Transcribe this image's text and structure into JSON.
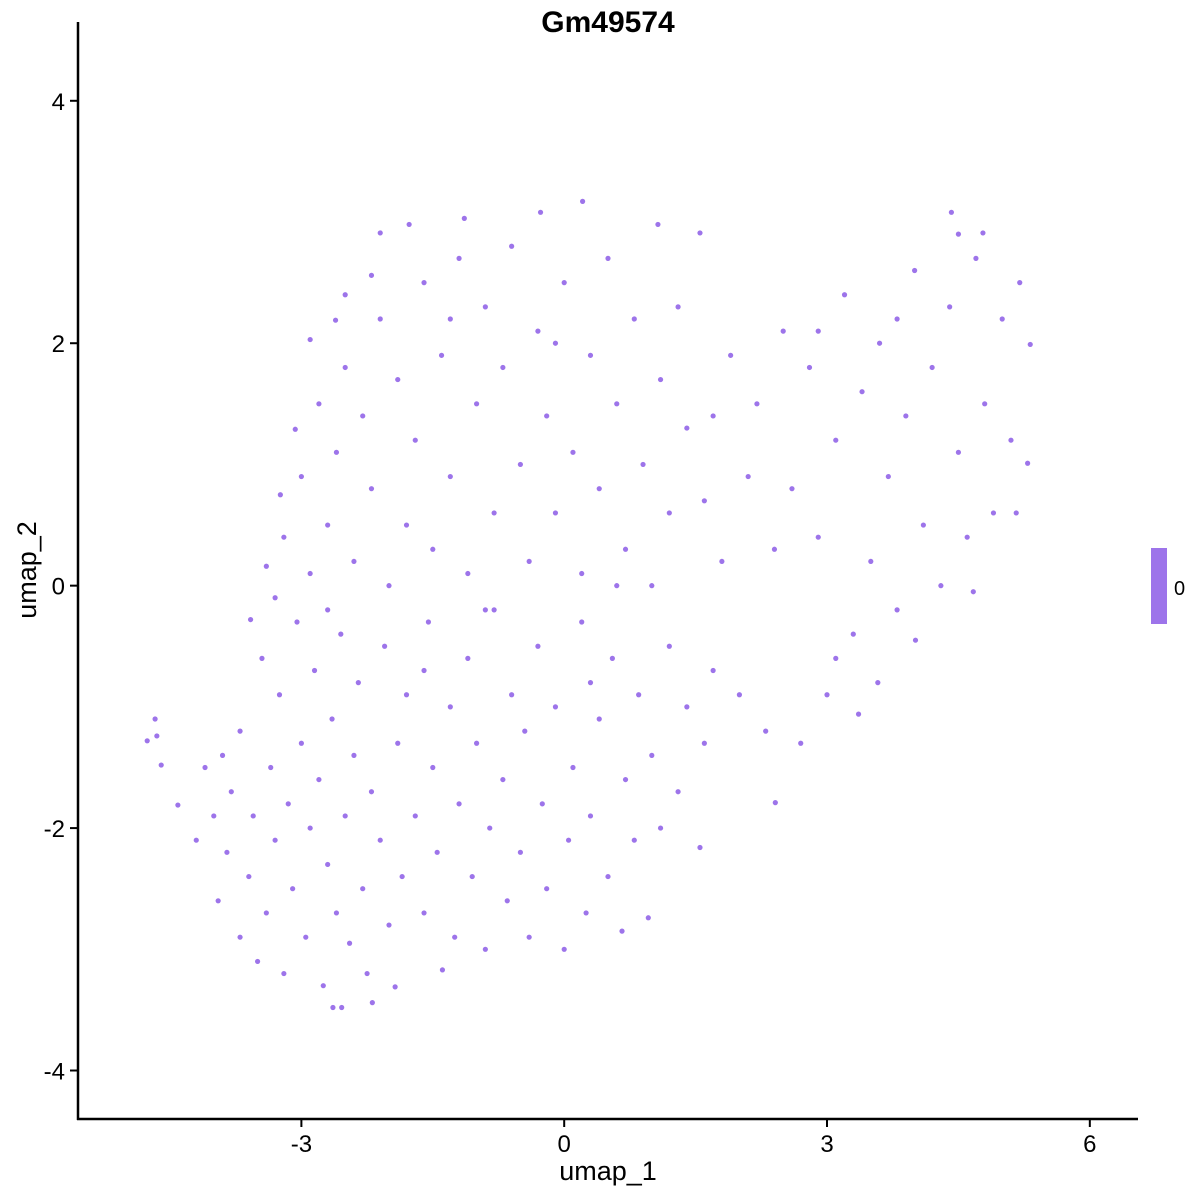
{
  "chart_data": {
    "type": "scatter",
    "title": "Gm49574",
    "xlabel": "umap_1",
    "ylabel": "umap_2",
    "xlim": [
      -5.55,
      6.55
    ],
    "ylim": [
      -4.4,
      4.65
    ],
    "xticks": [
      "-3",
      "0",
      "3",
      "6"
    ],
    "xtick_values": [
      -3,
      0,
      3,
      6
    ],
    "yticks": [
      "-4",
      "-2",
      "0",
      "2",
      "4"
    ],
    "ytick_values": [
      -4,
      -2,
      0,
      2,
      4
    ],
    "grid": false,
    "point_color": "#9d74ea",
    "legend": {
      "placement": "right",
      "labels": [
        "0"
      ],
      "color": "#9d74ea"
    },
    "points": [
      [
        -4.76,
        -1.28
      ],
      [
        -4.67,
        -1.1
      ],
      [
        -4.65,
        -1.24
      ],
      [
        -4.6,
        -1.48
      ],
      [
        -4.41,
        -1.81
      ],
      [
        -4.2,
        -2.1
      ],
      [
        -4.1,
        -1.5
      ],
      [
        -4.0,
        -1.9
      ],
      [
        -3.95,
        -2.6
      ],
      [
        -3.9,
        -1.4
      ],
      [
        -3.85,
        -2.2
      ],
      [
        -3.8,
        -1.7
      ],
      [
        -3.7,
        -2.9
      ],
      [
        -3.7,
        -1.2
      ],
      [
        -3.6,
        -2.4
      ],
      [
        -3.55,
        -1.9
      ],
      [
        -3.5,
        -3.1
      ],
      [
        -3.45,
        -0.6
      ],
      [
        -3.4,
        -2.7
      ],
      [
        -3.35,
        -1.5
      ],
      [
        -3.3,
        -2.1
      ],
      [
        -3.25,
        -0.9
      ],
      [
        -3.2,
        -3.2
      ],
      [
        -3.15,
        -1.8
      ],
      [
        -3.1,
        -2.5
      ],
      [
        -3.05,
        -0.3
      ],
      [
        -3.0,
        -1.3
      ],
      [
        -2.95,
        -2.9
      ],
      [
        -2.9,
        -2.0
      ],
      [
        -2.85,
        -0.7
      ],
      [
        -2.8,
        -1.6
      ],
      [
        -2.75,
        -3.3
      ],
      [
        -2.7,
        -2.3
      ],
      [
        -2.65,
        -1.1
      ],
      [
        -2.64,
        -3.48
      ],
      [
        -2.6,
        -2.7
      ],
      [
        -2.55,
        -0.4
      ],
      [
        -2.54,
        -3.48
      ],
      [
        -2.5,
        -1.9
      ],
      [
        -2.45,
        -2.95
      ],
      [
        -2.4,
        -1.4
      ],
      [
        -2.35,
        -0.8
      ],
      [
        -2.3,
        -2.5
      ],
      [
        -2.25,
        -3.2
      ],
      [
        -2.19,
        -3.44
      ],
      [
        -2.2,
        -1.7
      ],
      [
        -2.1,
        -2.1
      ],
      [
        -2.05,
        -0.5
      ],
      [
        -2.0,
        -2.8
      ],
      [
        -1.93,
        -3.31
      ],
      [
        -1.9,
        -1.3
      ],
      [
        -1.85,
        -2.4
      ],
      [
        -1.8,
        -0.9
      ],
      [
        -1.7,
        -1.9
      ],
      [
        -1.6,
        -2.7
      ],
      [
        -1.55,
        -0.3
      ],
      [
        -1.5,
        -1.5
      ],
      [
        -1.45,
        -2.2
      ],
      [
        -1.39,
        -3.17
      ],
      [
        -1.3,
        -1.0
      ],
      [
        -1.25,
        -2.9
      ],
      [
        -1.2,
        -1.8
      ],
      [
        -1.1,
        -0.6
      ],
      [
        -1.05,
        -2.4
      ],
      [
        -1.0,
        -1.3
      ],
      [
        -0.9,
        -3.0
      ],
      [
        -0.85,
        -2.0
      ],
      [
        -0.8,
        -0.2
      ],
      [
        -0.7,
        -1.6
      ],
      [
        -0.65,
        -2.6
      ],
      [
        -0.6,
        -0.9
      ],
      [
        -0.5,
        -2.2
      ],
      [
        -0.45,
        -1.2
      ],
      [
        -0.4,
        -2.9
      ],
      [
        -0.3,
        -0.5
      ],
      [
        -0.25,
        -1.8
      ],
      [
        -0.2,
        -2.5
      ],
      [
        -0.1,
        -1.0
      ],
      [
        0.0,
        -3.0
      ],
      [
        0.05,
        -2.1
      ],
      [
        0.1,
        -1.5
      ],
      [
        0.2,
        -0.3
      ],
      [
        0.25,
        -2.7
      ],
      [
        0.3,
        -1.9
      ],
      [
        0.4,
        -1.1
      ],
      [
        0.5,
        -2.4
      ],
      [
        0.55,
        -0.6
      ],
      [
        0.66,
        -2.85
      ],
      [
        0.7,
        -1.6
      ],
      [
        0.8,
        -2.1
      ],
      [
        0.85,
        -0.9
      ],
      [
        0.96,
        -2.74
      ],
      [
        1.0,
        -1.4
      ],
      [
        1.1,
        -2.0
      ],
      [
        1.2,
        -0.5
      ],
      [
        1.3,
        -1.7
      ],
      [
        1.4,
        -1.0
      ],
      [
        1.55,
        -2.16
      ],
      [
        1.6,
        -1.3
      ],
      [
        1.7,
        -0.7
      ],
      [
        -3.58,
        -0.28
      ],
      [
        -3.4,
        0.16
      ],
      [
        -3.24,
        0.75
      ],
      [
        -3.07,
        1.29
      ],
      [
        -2.9,
        2.03
      ],
      [
        -2.61,
        2.19
      ],
      [
        -2.2,
        2.56
      ],
      [
        -3.2,
        0.4
      ],
      [
        -3.0,
        0.9
      ],
      [
        -2.9,
        0.1
      ],
      [
        -2.8,
        1.5
      ],
      [
        -2.7,
        0.5
      ],
      [
        -2.6,
        1.1
      ],
      [
        -2.5,
        1.8
      ],
      [
        -2.4,
        0.2
      ],
      [
        -2.3,
        1.4
      ],
      [
        -2.2,
        0.8
      ],
      [
        -2.1,
        2.2
      ],
      [
        -2.0,
        0.0
      ],
      [
        -1.9,
        1.7
      ],
      [
        -1.8,
        0.5
      ],
      [
        -1.77,
        2.98
      ],
      [
        -1.7,
        1.2
      ],
      [
        -1.6,
        2.5
      ],
      [
        -1.5,
        0.3
      ],
      [
        -1.4,
        1.9
      ],
      [
        -1.3,
        0.9
      ],
      [
        -1.2,
        2.7
      ],
      [
        -1.14,
        3.03
      ],
      [
        -1.1,
        0.1
      ],
      [
        -1.0,
        1.5
      ],
      [
        -0.9,
        2.3
      ],
      [
        -0.8,
        0.6
      ],
      [
        -0.7,
        1.8
      ],
      [
        -0.6,
        2.8
      ],
      [
        -0.5,
        1.0
      ],
      [
        -0.4,
        0.2
      ],
      [
        -0.3,
        2.1
      ],
      [
        -0.27,
        3.08
      ],
      [
        -0.2,
        1.4
      ],
      [
        -0.1,
        0.6
      ],
      [
        0.0,
        2.5
      ],
      [
        0.1,
        1.1
      ],
      [
        0.2,
        0.1
      ],
      [
        0.21,
        3.17
      ],
      [
        0.3,
        1.9
      ],
      [
        0.4,
        0.8
      ],
      [
        0.5,
        2.7
      ],
      [
        0.6,
        1.5
      ],
      [
        0.7,
        0.3
      ],
      [
        0.8,
        2.2
      ],
      [
        0.9,
        1.0
      ],
      [
        1.0,
        0.0
      ],
      [
        1.07,
        2.98
      ],
      [
        1.1,
        1.7
      ],
      [
        1.2,
        0.6
      ],
      [
        1.3,
        2.3
      ],
      [
        1.4,
        1.3
      ],
      [
        1.55,
        2.91
      ],
      [
        1.6,
        0.7
      ],
      [
        -2.1,
        2.91
      ],
      [
        -2.5,
        2.4
      ],
      [
        -1.3,
        2.2
      ],
      [
        -0.1,
        2.0
      ],
      [
        0.6,
        0.0
      ],
      [
        0.3,
        -0.8
      ],
      [
        -0.9,
        -0.2
      ],
      [
        -1.6,
        -0.7
      ],
      [
        -2.7,
        -0.2
      ],
      [
        -3.3,
        -0.1
      ],
      [
        1.7,
        1.4
      ],
      [
        1.8,
        0.2
      ],
      [
        1.9,
        1.9
      ],
      [
        2.0,
        -0.9
      ],
      [
        2.1,
        0.9
      ],
      [
        2.2,
        1.5
      ],
      [
        2.3,
        -1.2
      ],
      [
        2.41,
        -1.79
      ],
      [
        2.5,
        2.1
      ],
      [
        2.6,
        0.8
      ],
      [
        2.7,
        -1.3
      ],
      [
        2.8,
        1.8
      ],
      [
        2.9,
        0.4
      ],
      [
        3.0,
        -0.9
      ],
      [
        3.1,
        1.2
      ],
      [
        3.2,
        2.4
      ],
      [
        3.3,
        -0.4
      ],
      [
        3.36,
        -1.06
      ],
      [
        3.4,
        1.6
      ],
      [
        3.5,
        0.2
      ],
      [
        3.58,
        -0.8
      ],
      [
        3.6,
        2.0
      ],
      [
        3.7,
        0.9
      ],
      [
        3.8,
        -0.2
      ],
      [
        3.9,
        1.4
      ],
      [
        4.0,
        2.6
      ],
      [
        4.01,
        -0.45
      ],
      [
        4.1,
        0.5
      ],
      [
        4.2,
        1.8
      ],
      [
        4.3,
        0.0
      ],
      [
        4.42,
        3.08
      ],
      [
        4.4,
        2.3
      ],
      [
        4.5,
        1.1
      ],
      [
        4.6,
        0.4
      ],
      [
        4.67,
        -0.05
      ],
      [
        4.7,
        2.7
      ],
      [
        4.78,
        2.91
      ],
      [
        4.8,
        1.5
      ],
      [
        4.9,
        0.6
      ],
      [
        5.0,
        2.2
      ],
      [
        5.1,
        1.2
      ],
      [
        5.16,
        0.6
      ],
      [
        5.2,
        2.5
      ],
      [
        5.29,
        1.01
      ],
      [
        5.32,
        1.99
      ],
      [
        4.5,
        2.9
      ],
      [
        3.8,
        2.2
      ],
      [
        2.9,
        2.1
      ],
      [
        2.4,
        0.3
      ],
      [
        3.1,
        -0.6
      ]
    ]
  }
}
